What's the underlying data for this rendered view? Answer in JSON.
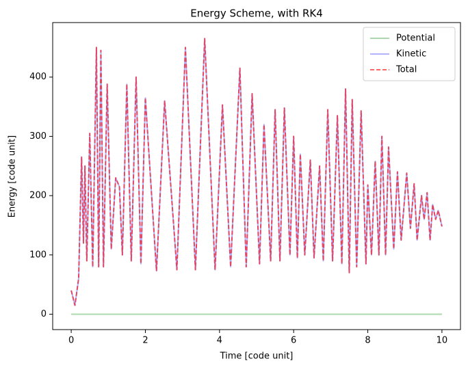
{
  "chart_data": {
    "type": "line",
    "title": "Energy Scheme, with RK4",
    "x_label": "Time [code unit]",
    "y_label": "Energy [code unit]",
    "xlim": [
      -0.5,
      10.5
    ],
    "ylim": [
      -26,
      492
    ],
    "xticks": [
      0,
      2,
      4,
      6,
      8,
      10
    ],
    "yticks": [
      0,
      100,
      200,
      300,
      400
    ],
    "grid": false,
    "legend": "upper right",
    "x": [
      0.0,
      0.1,
      0.2,
      0.28,
      0.33,
      0.37,
      0.42,
      0.5,
      0.58,
      0.68,
      0.74,
      0.8,
      0.87,
      0.97,
      1.08,
      1.2,
      1.3,
      1.38,
      1.5,
      1.62,
      1.75,
      1.88,
      2.0,
      2.3,
      2.52,
      2.85,
      3.08,
      3.35,
      3.6,
      3.88,
      4.08,
      4.3,
      4.55,
      4.72,
      4.88,
      5.08,
      5.2,
      5.38,
      5.5,
      5.63,
      5.75,
      5.9,
      6.0,
      6.1,
      6.18,
      6.3,
      6.45,
      6.55,
      6.7,
      6.8,
      6.92,
      7.05,
      7.18,
      7.3,
      7.4,
      7.5,
      7.58,
      7.7,
      7.82,
      7.95,
      8.0,
      8.1,
      8.2,
      8.3,
      8.38,
      8.48,
      8.56,
      8.7,
      8.8,
      8.9,
      9.05,
      9.15,
      9.25,
      9.33,
      9.45,
      9.52,
      9.6,
      9.68,
      9.75,
      9.83,
      9.9,
      10.0
    ],
    "series": [
      {
        "name": "Potential",
        "color": "#2ca02c",
        "alpha": 0.4,
        "linestyle": "solid",
        "x": [
          0,
          10
        ],
        "values": [
          0,
          0
        ]
      },
      {
        "name": "Kinetic",
        "color": "#0000ff",
        "alpha": 0.3,
        "linestyle": "solid",
        "values": [
          40,
          15,
          60,
          265,
          120,
          250,
          90,
          305,
          80,
          450,
          80,
          445,
          80,
          388,
          110,
          230,
          215,
          100,
          388,
          90,
          400,
          85,
          365,
          73,
          360,
          75,
          450,
          75,
          465,
          75,
          353,
          80,
          415,
          80,
          372,
          85,
          320,
          90,
          345,
          90,
          348,
          100,
          300,
          95,
          270,
          100,
          260,
          95,
          250,
          90,
          345,
          90,
          335,
          85,
          380,
          70,
          362,
          80,
          343,
          85,
          218,
          100,
          258,
          100,
          300,
          100,
          282,
          110,
          240,
          125,
          238,
          145,
          220,
          125,
          200,
          160,
          205,
          125,
          185,
          160,
          175,
          148
        ]
      },
      {
        "name": "Total",
        "color": "#ff0000",
        "alpha": 0.6,
        "linestyle": "dashed",
        "values": [
          40,
          15,
          60,
          265,
          120,
          250,
          90,
          305,
          80,
          450,
          80,
          445,
          80,
          388,
          110,
          230,
          215,
          100,
          388,
          90,
          400,
          85,
          365,
          73,
          360,
          75,
          450,
          75,
          465,
          75,
          353,
          80,
          415,
          80,
          372,
          85,
          320,
          90,
          345,
          90,
          348,
          100,
          300,
          95,
          270,
          100,
          260,
          95,
          250,
          90,
          345,
          90,
          335,
          85,
          380,
          70,
          362,
          80,
          343,
          85,
          218,
          100,
          258,
          100,
          300,
          100,
          282,
          110,
          240,
          125,
          238,
          145,
          220,
          125,
          200,
          160,
          205,
          125,
          185,
          160,
          175,
          148
        ]
      }
    ]
  }
}
